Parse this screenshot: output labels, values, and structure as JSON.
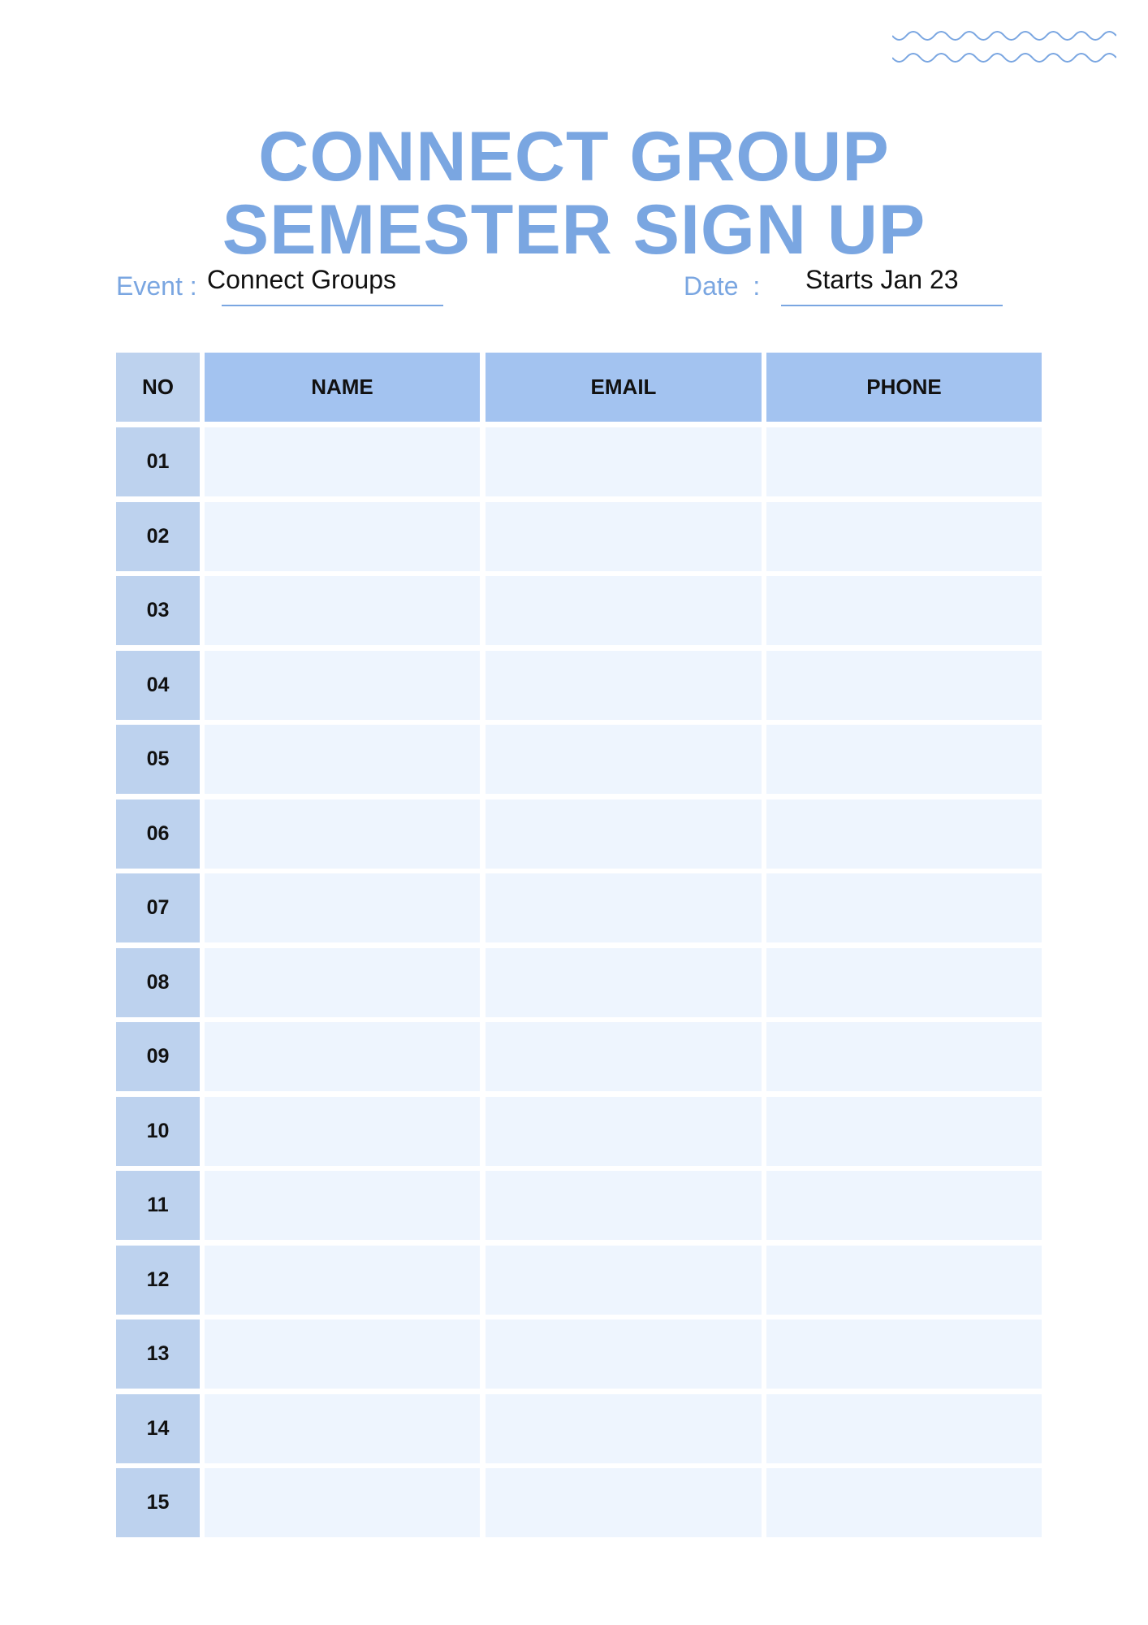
{
  "title": {
    "line1": "CONNECT GROUP",
    "line2": "SEMESTER SIGN UP"
  },
  "event": {
    "label": "Event :",
    "value": "Connect Groups"
  },
  "date": {
    "label": "Date  :",
    "value": "Starts Jan 23"
  },
  "table": {
    "headers": [
      "NO",
      "NAME",
      "EMAIL",
      "PHONE"
    ],
    "rows": [
      "01",
      "02",
      "03",
      "04",
      "05",
      "06",
      "07",
      "08",
      "09",
      "10",
      "11",
      "12",
      "13",
      "14",
      "15"
    ]
  },
  "colors": {
    "accent": "#7aa6e1",
    "header": "#a3c3f0",
    "number_column": "#bdd2ee",
    "cell": "#eef5fe"
  },
  "decoration": "wave-lines"
}
